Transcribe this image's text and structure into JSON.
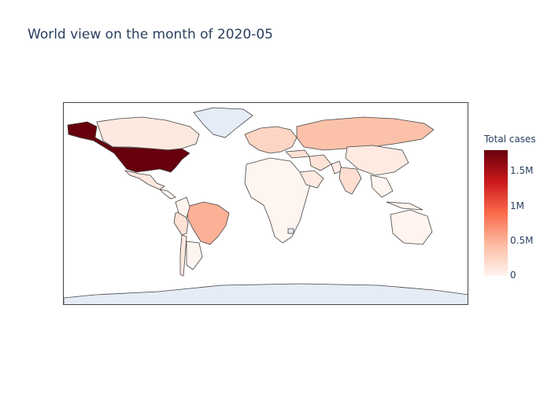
{
  "title": "World view on the month of 2020-05",
  "colorbar": {
    "title": "Total cases",
    "ticks": [
      "1.5M",
      "1M",
      "0.5M",
      "0"
    ],
    "tick_values": [
      1500000,
      1000000,
      500000,
      0
    ],
    "max": 1790000,
    "colorscale": [
      "#fff5f0",
      "#fcbba1",
      "#fb6a4a",
      "#cb181d",
      "#67000d"
    ]
  },
  "chart_data": {
    "type": "choropleth",
    "metric": "Total cases",
    "month": "2020-05",
    "projection": "equirectangular",
    "no_data_color": "#e5ecf6",
    "regions": [
      {
        "name": "United States",
        "value": 1790000
      },
      {
        "name": "Brazil",
        "value": 500000
      },
      {
        "name": "Russia",
        "value": 400000
      },
      {
        "name": "India",
        "value": 180000
      },
      {
        "name": "Peru",
        "value": 160000
      },
      {
        "name": "Canada",
        "value": 90000
      },
      {
        "name": "Mexico",
        "value": 90000
      },
      {
        "name": "Chile",
        "value": 90000
      },
      {
        "name": "Iran",
        "value": 150000
      },
      {
        "name": "Turkey",
        "value": 160000
      },
      {
        "name": "Saudi Arabia",
        "value": 85000
      },
      {
        "name": "Pakistan",
        "value": 70000
      },
      {
        "name": "China",
        "value": 84000
      },
      {
        "name": "Europe",
        "value": 250000
      },
      {
        "name": "Australia",
        "value": 7000
      },
      {
        "name": "Greenland",
        "value": null
      },
      {
        "name": "Antarctica",
        "value": null
      },
      {
        "name": "Lesotho",
        "value": null
      }
    ]
  }
}
